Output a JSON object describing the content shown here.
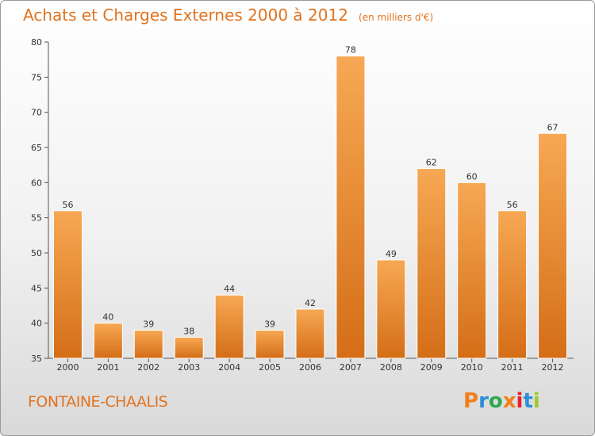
{
  "header": {
    "title": "Achats et Charges Externes 2000 à 2012",
    "unit_note": "(en milliers d'€)"
  },
  "footer": {
    "commune": "FONTAINE-CHAALIS",
    "logo_text": "Proxiti",
    "logo_colors": [
      "#f07f1a",
      "#2a8fd8",
      "#2fa84f",
      "#f07f1a",
      "#e8202a",
      "#2a8fd8",
      "#9ccc2a"
    ]
  },
  "colors": {
    "bar_top": "#f7a854",
    "bar_bottom": "#d46e17",
    "accent": "#e0731f"
  },
  "chart_data": {
    "type": "bar",
    "title": "Achats et Charges Externes 2000 à 2012",
    "subtitle": "(en milliers d'€)",
    "xlabel": "",
    "ylabel": "",
    "categories": [
      "2000",
      "2001",
      "2002",
      "2003",
      "2004",
      "2005",
      "2006",
      "2007",
      "2008",
      "2009",
      "2010",
      "2011",
      "2012"
    ],
    "values": [
      56,
      40,
      39,
      38,
      44,
      39,
      42,
      78,
      49,
      62,
      60,
      56,
      67
    ],
    "ylim": [
      35,
      80
    ],
    "yticks": [
      35,
      40,
      45,
      50,
      55,
      60,
      65,
      70,
      75,
      80
    ],
    "grid": false,
    "legend": "none"
  }
}
